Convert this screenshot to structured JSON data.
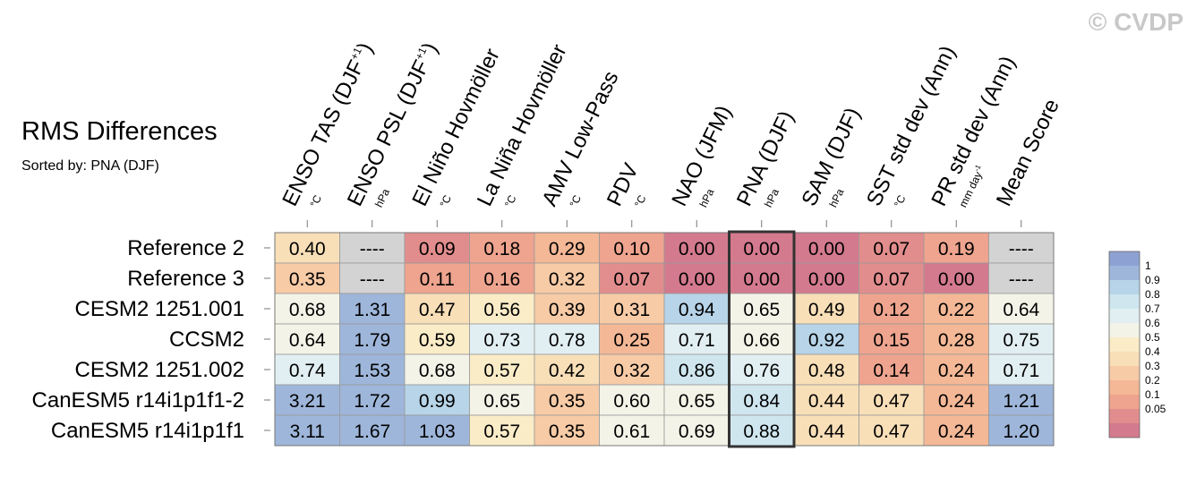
{
  "chart_data": {
    "type": "heatmap",
    "title": "RMS Differences",
    "subtitle": "Sorted by: PNA (DJF)",
    "watermark": "© CVDP",
    "highlight_column": 7,
    "columns": [
      {
        "name": "ENSO TAS (DJF",
        "sup": "+1",
        "close": ")",
        "unit": "°C"
      },
      {
        "name": "ENSO PSL (DJF",
        "sup": "+1",
        "close": ")",
        "unit": "hPa"
      },
      {
        "name": "El Niño Hovmöller",
        "sup": "",
        "close": "",
        "unit": "°C"
      },
      {
        "name": "La Niña Hovmöller",
        "sup": "",
        "close": "",
        "unit": "°C"
      },
      {
        "name": "AMV Low-Pass",
        "sup": "",
        "close": "",
        "unit": "°C"
      },
      {
        "name": "PDV",
        "sup": "",
        "close": "",
        "unit": "°C"
      },
      {
        "name": "NAO (JFM)",
        "sup": "",
        "close": "",
        "unit": "hPa"
      },
      {
        "name": "PNA (DJF)",
        "sup": "",
        "close": "",
        "unit": "hPa"
      },
      {
        "name": "SAM (DJF)",
        "sup": "",
        "close": "",
        "unit": "hPa"
      },
      {
        "name": "SST std dev (Ann)",
        "sup": "",
        "close": "",
        "unit": "°C"
      },
      {
        "name": "PR std dev (Ann)",
        "sup": "",
        "close": "",
        "unit": "mm day",
        "unit_sup": "-1"
      },
      {
        "name": "Mean Score",
        "sup": "",
        "close": "",
        "unit": ""
      }
    ],
    "rows": [
      {
        "name": "Reference 2",
        "values": [
          0.4,
          null,
          0.09,
          0.18,
          0.29,
          0.1,
          0.0,
          0.0,
          0.0,
          0.07,
          0.19,
          null
        ]
      },
      {
        "name": "Reference 3",
        "values": [
          0.35,
          null,
          0.11,
          0.16,
          0.32,
          0.07,
          0.0,
          0.0,
          0.0,
          0.07,
          0.0,
          null
        ]
      },
      {
        "name": "CESM2 1251.001",
        "values": [
          0.68,
          1.31,
          0.47,
          0.56,
          0.39,
          0.31,
          0.94,
          0.65,
          0.49,
          0.12,
          0.22,
          0.64
        ]
      },
      {
        "name": "CCSM2",
        "values": [
          0.64,
          1.79,
          0.59,
          0.73,
          0.78,
          0.25,
          0.71,
          0.66,
          0.92,
          0.15,
          0.28,
          0.75
        ]
      },
      {
        "name": "CESM2 1251.002",
        "values": [
          0.74,
          1.53,
          0.68,
          0.57,
          0.42,
          0.32,
          0.86,
          0.76,
          0.48,
          0.14,
          0.24,
          0.71
        ]
      },
      {
        "name": "CanESM5 r14i1p1f1-2",
        "values": [
          3.21,
          1.72,
          0.99,
          0.65,
          0.35,
          0.6,
          0.65,
          0.84,
          0.44,
          0.47,
          0.24,
          1.21
        ]
      },
      {
        "name": "CanESM5 r14i1p1f1",
        "values": [
          3.11,
          1.67,
          1.03,
          0.57,
          0.35,
          0.61,
          0.69,
          0.88,
          0.44,
          0.47,
          0.24,
          1.2
        ]
      }
    ],
    "missing_label": "----",
    "colorbar": {
      "levels": [
        0.05,
        0.1,
        0.2,
        0.3,
        0.4,
        0.5,
        0.6,
        0.7,
        0.8,
        0.9,
        1
      ],
      "labels": [
        "1",
        "0.9",
        "0.8",
        "0.7",
        "0.6",
        "0.5",
        "0.4",
        "0.3",
        "0.2",
        "0.1",
        "0.05"
      ],
      "colors": [
        "#d47a8e",
        "#e28d8d",
        "#eea48e",
        "#f4b896",
        "#f7cba6",
        "#f8dfb8",
        "#faecc7",
        "#f3f3e8",
        "#e2eff2",
        "#cfe6ef",
        "#b7d4e8",
        "#9eb6da",
        "#8da2d2"
      ],
      "missing_color": "#d3d3d3"
    }
  }
}
